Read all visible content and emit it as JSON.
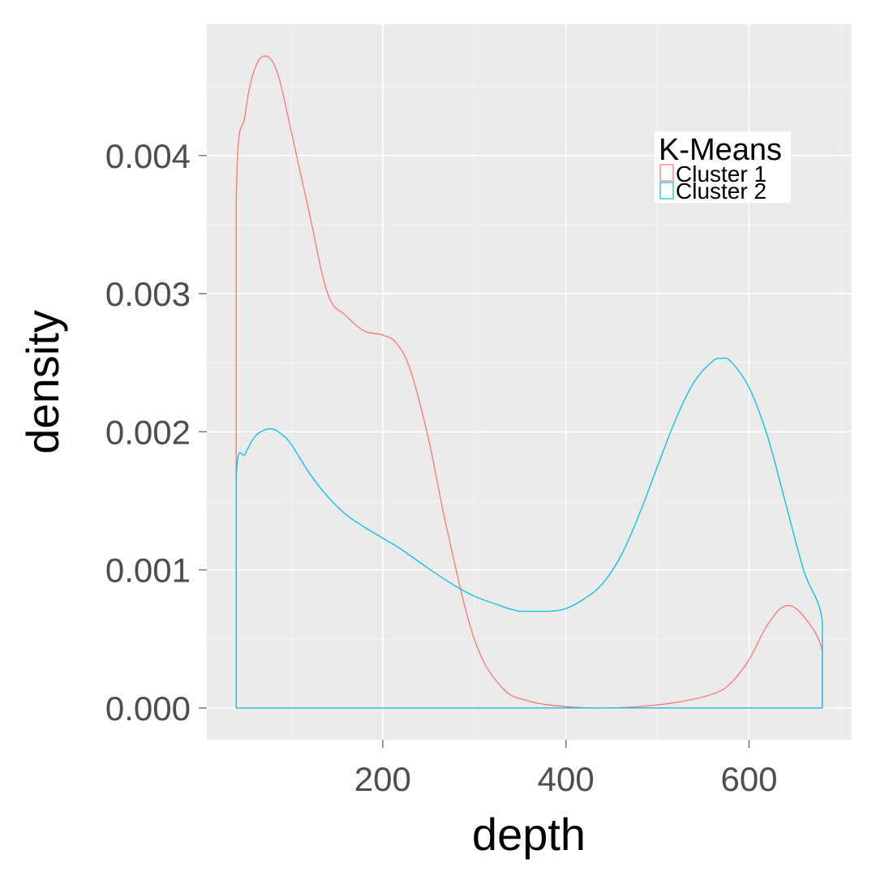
{
  "chart_data": {
    "type": "line",
    "xlabel": "depth",
    "ylabel": "density",
    "xlim": [
      8,
      712
    ],
    "ylim": [
      -0.00023,
      0.00495
    ],
    "x_ticks": [
      200,
      400,
      600
    ],
    "x_minor_ticks": [
      100,
      300,
      500,
      700
    ],
    "y_ticks": [
      0.0,
      0.001,
      0.002,
      0.003,
      0.004
    ],
    "y_tick_labels": [
      "0.000",
      "0.001",
      "0.002",
      "0.003",
      "0.004"
    ],
    "y_minor_ticks": [
      0.0005,
      0.0015,
      0.0025,
      0.0035,
      0.0045
    ],
    "background": "#ebebeb",
    "grid": true,
    "legend": {
      "title": "K-Means",
      "placement": "top-right inside",
      "entries": [
        "Cluster 1",
        "Cluster 2"
      ]
    },
    "series": [
      {
        "name": "Cluster 1",
        "color": "#f8766d",
        "x": [
          40,
          40,
          50,
          60,
          72,
          85,
          100,
          120,
          140,
          160,
          180,
          200,
          215,
          230,
          250,
          270,
          300,
          330,
          360,
          400,
          440,
          480,
          520,
          560,
          580,
          600,
          620,
          640,
          660,
          680,
          680,
          40
        ],
        "y": [
          0.0,
          0.00362,
          0.0043,
          0.00462,
          0.00472,
          0.0046,
          0.00418,
          0.00358,
          0.003,
          0.00284,
          0.00273,
          0.0027,
          0.00264,
          0.00245,
          0.00195,
          0.0013,
          0.0005,
          0.00015,
          5e-05,
          1e-05,
          0.0,
          1e-05,
          4e-05,
          0.0001,
          0.00018,
          0.00035,
          0.0006,
          0.00074,
          0.00066,
          0.00041,
          0.0,
          0.0
        ]
      },
      {
        "name": "Cluster 2",
        "color": "#00bfe8",
        "x": [
          40,
          40,
          50,
          60,
          70,
          80,
          90,
          100,
          120,
          140,
          160,
          180,
          200,
          220,
          250,
          280,
          300,
          320,
          350,
          380,
          400,
          420,
          440,
          460,
          480,
          500,
          520,
          540,
          560,
          570,
          580,
          600,
          620,
          640,
          660,
          680,
          680,
          40
        ],
        "y": [
          0.0,
          0.00165,
          0.00184,
          0.00196,
          0.00201,
          0.00202,
          0.00198,
          0.00191,
          0.0017,
          0.00153,
          0.0014,
          0.00131,
          0.00123,
          0.00115,
          0.00101,
          0.00088,
          0.00081,
          0.00076,
          0.0007,
          0.0007,
          0.00072,
          0.00079,
          0.0009,
          0.0011,
          0.0014,
          0.00175,
          0.00209,
          0.00236,
          0.00251,
          0.00253,
          0.00251,
          0.00232,
          0.00197,
          0.00148,
          0.00099,
          0.00063,
          0.0,
          0.0
        ]
      }
    ]
  }
}
